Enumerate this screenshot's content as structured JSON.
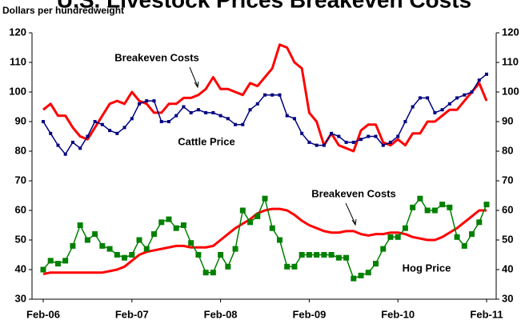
{
  "chart_data": {
    "type": "line",
    "title": "U.S. Livestock Prices Breakeven Costs",
    "subtitle": "Dollars per hundredweight",
    "categories": [
      "Feb-06",
      null,
      null,
      null,
      null,
      null,
      null,
      null,
      null,
      null,
      null,
      null,
      "Feb-07",
      null,
      null,
      null,
      null,
      null,
      null,
      null,
      null,
      null,
      null,
      null,
      "Feb-08",
      null,
      null,
      null,
      null,
      null,
      null,
      null,
      null,
      null,
      null,
      null,
      "Feb-09",
      null,
      null,
      null,
      null,
      null,
      null,
      null,
      null,
      null,
      null,
      null,
      "Feb-10",
      null,
      null,
      null,
      null,
      null,
      null,
      null,
      null,
      null,
      null,
      null,
      "Feb-11"
    ],
    "series": [
      {
        "name": "Breakeven Costs",
        "color": "#ff0000",
        "marker": "none",
        "values": [
          94,
          96,
          92,
          92,
          88,
          85,
          84,
          88,
          92,
          96,
          97,
          96,
          100,
          97,
          96,
          93,
          93,
          96,
          96,
          98,
          98,
          99,
          101,
          105,
          101,
          101,
          100,
          99,
          103,
          102,
          105,
          108,
          116,
          115,
          110,
          108,
          93,
          90,
          82,
          86,
          82,
          81,
          80,
          87,
          89,
          89,
          83,
          82,
          84,
          82,
          86,
          86,
          90,
          90,
          92,
          94,
          94,
          97,
          100,
          103,
          97
        ]
      },
      {
        "name": "Cattle Price",
        "color": "#000080",
        "marker": "square-small",
        "values": [
          90,
          86,
          82,
          79,
          83,
          81,
          85,
          90,
          89,
          87,
          86,
          88,
          91,
          96,
          97,
          97,
          90,
          90,
          92,
          95,
          93,
          94,
          93,
          93,
          92,
          91,
          89,
          89,
          94,
          96,
          99,
          99,
          99,
          92,
          91,
          86,
          83,
          82,
          82,
          86,
          85,
          83,
          83,
          84,
          85,
          85,
          82,
          83,
          85,
          90,
          95,
          98,
          98,
          93,
          94,
          96,
          98,
          99,
          100,
          104,
          106
        ]
      },
      {
        "name": "Breakeven Costs",
        "color": "#ff0000",
        "marker": "none",
        "values": [
          38.5,
          39,
          39,
          39,
          39,
          39,
          39,
          39,
          39,
          39.5,
          40,
          41,
          43,
          45,
          46,
          46.5,
          47,
          47.5,
          48,
          48,
          47.5,
          47.5,
          47.5,
          48,
          50,
          52,
          54,
          55.5,
          57,
          59,
          60,
          60.5,
          60.5,
          60,
          58.5,
          56.5,
          55,
          54,
          53,
          52.5,
          52.5,
          53,
          53,
          52,
          51.5,
          52,
          52,
          52.5,
          52.5,
          52,
          51,
          50.5,
          50,
          50,
          51,
          52.5,
          54,
          56,
          58,
          60,
          60
        ]
      },
      {
        "name": "Hog Price",
        "color": "#008000",
        "marker": "square",
        "values": [
          40,
          43,
          42,
          43,
          48,
          55,
          50,
          52,
          48,
          47,
          45,
          44,
          45,
          50,
          47,
          52,
          56,
          57,
          54,
          55,
          49,
          45,
          39,
          39,
          45,
          41,
          47,
          60,
          56,
          58,
          64,
          54,
          50,
          41,
          41,
          45,
          45,
          45,
          45,
          45,
          44,
          44,
          37,
          38,
          39,
          42,
          47,
          51,
          51,
          54,
          61,
          64,
          60,
          60,
          62,
          61,
          51,
          48,
          52,
          56,
          62
        ]
      }
    ],
    "ylim": [
      30,
      120
    ],
    "yticks": [
      30,
      40,
      50,
      60,
      70,
      80,
      90,
      100,
      110,
      120
    ],
    "y2lim": [
      30,
      120
    ],
    "y2ticks": [
      30,
      40,
      50,
      60,
      70,
      80,
      90,
      100,
      110,
      120
    ],
    "grid": false
  }
}
